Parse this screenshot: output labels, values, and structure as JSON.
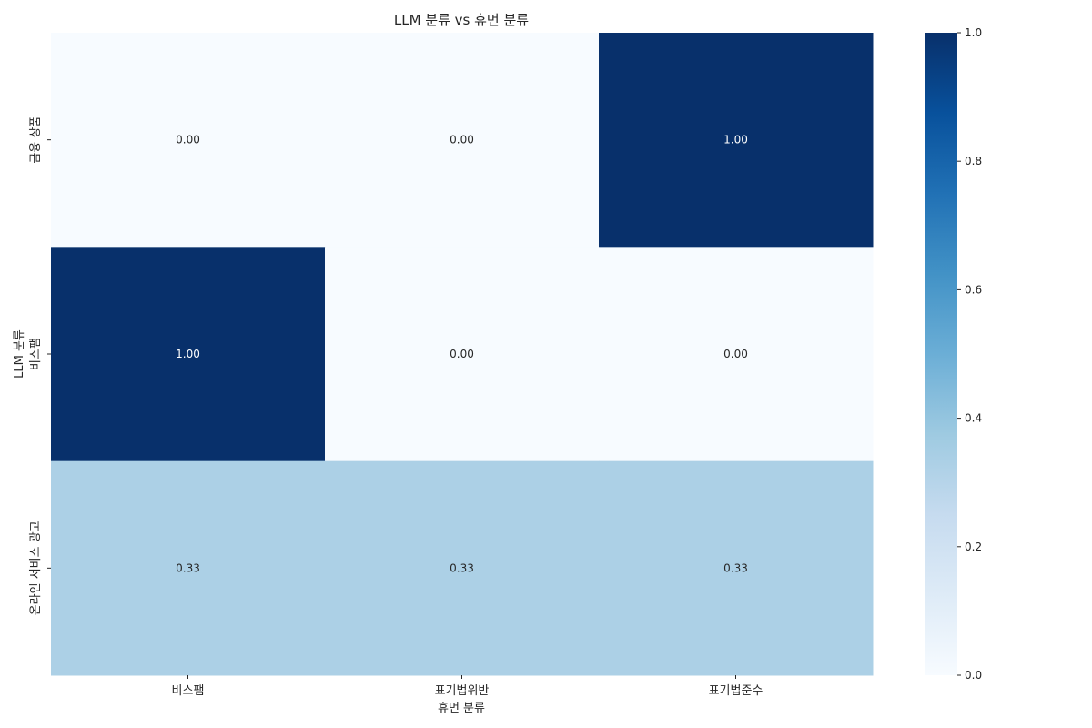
{
  "chart_data": {
    "type": "heatmap",
    "title": "LLM 분류 vs 휴먼 분류",
    "xlabel": "휴먼 분류",
    "ylabel": "LLM 분류",
    "x_categories": [
      "비스팸",
      "표기법위반",
      "표기법준수"
    ],
    "y_categories": [
      "금융 상품",
      "비스팸",
      "온라인 서비스 광고"
    ],
    "values": [
      [
        0.0,
        0.0,
        1.0
      ],
      [
        1.0,
        0.0,
        0.0
      ],
      [
        0.33,
        0.33,
        0.33
      ]
    ],
    "value_labels": [
      [
        "0.00",
        "0.00",
        "1.00"
      ],
      [
        "1.00",
        "0.00",
        "0.00"
      ],
      [
        "0.33",
        "0.33",
        "0.33"
      ]
    ],
    "colorbar": {
      "range": [
        0.0,
        1.0
      ],
      "ticks": [
        "0.0",
        "0.2",
        "0.4",
        "0.6",
        "0.8",
        "1.0"
      ],
      "colormap": "Blues"
    },
    "grid": false
  }
}
